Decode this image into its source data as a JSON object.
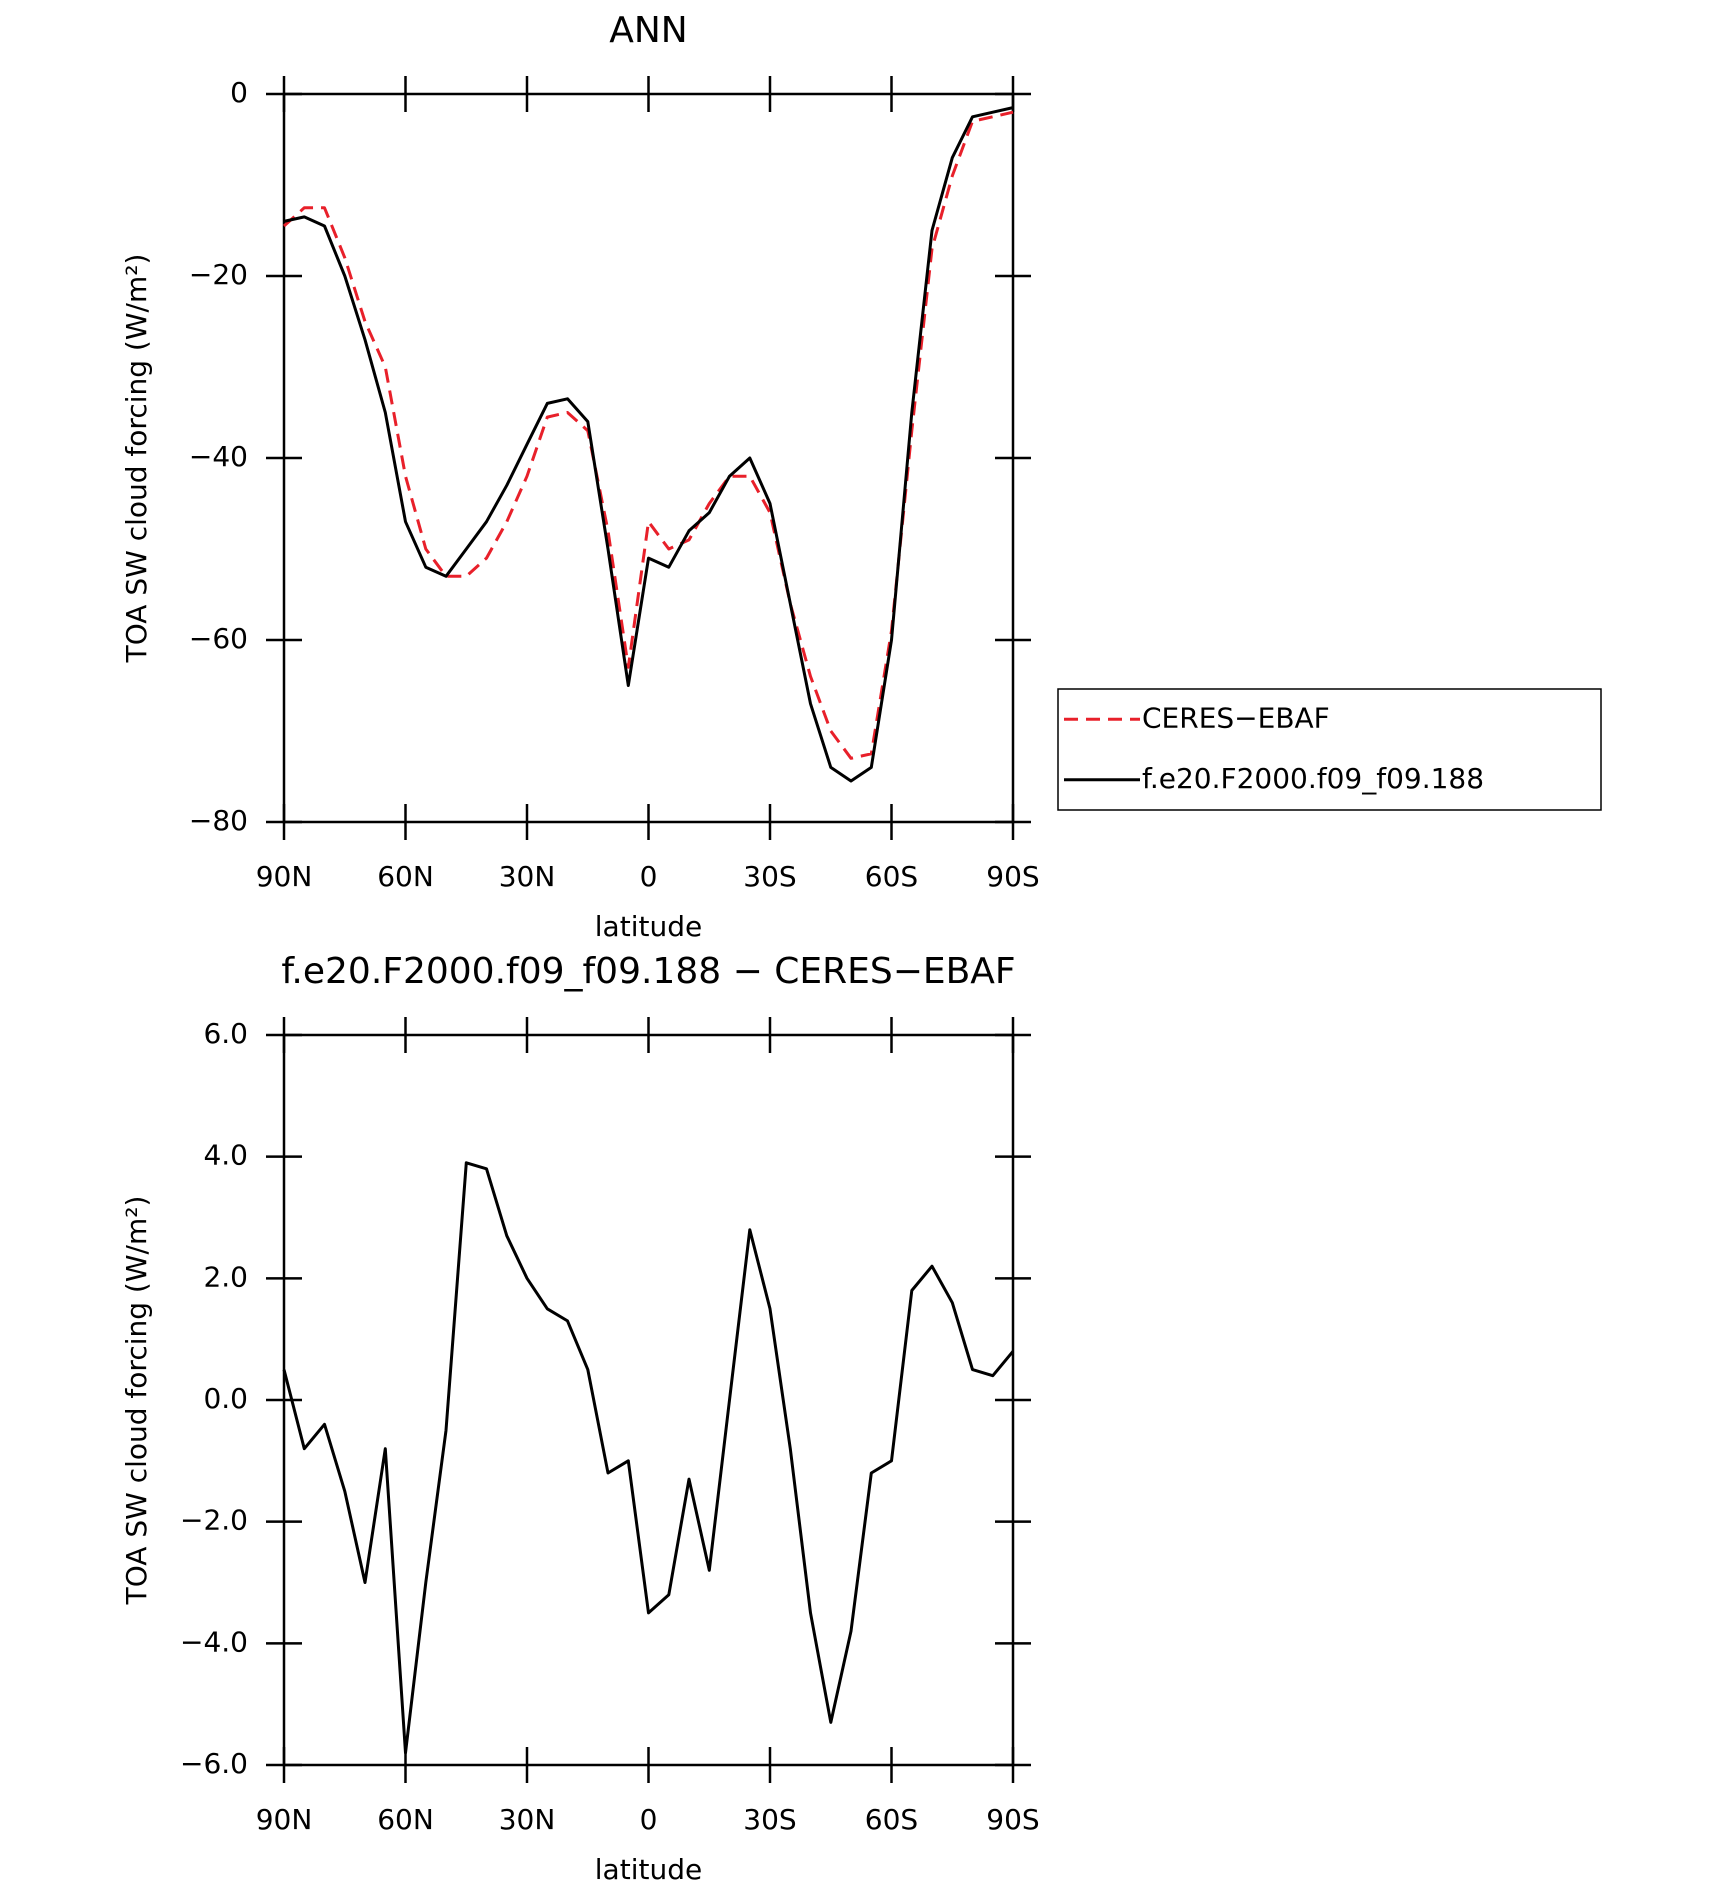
{
  "chart_data": [
    {
      "type": "line",
      "title": "ANN",
      "xlabel": "latitude",
      "ylabel": "TOA SW cloud forcing (W/m²)",
      "x": [
        90,
        85,
        80,
        75,
        70,
        65,
        60,
        55,
        50,
        45,
        40,
        35,
        30,
        25,
        20,
        15,
        10,
        5,
        0,
        -5,
        -10,
        -15,
        -20,
        -25,
        -30,
        -35,
        -40,
        -45,
        -50,
        -55,
        -60,
        -65,
        -70,
        -75,
        -80,
        -85,
        -90
      ],
      "series": [
        {
          "name": "CERES−EBAF",
          "color": "#e8202a",
          "dashed": true,
          "values": [
            -14.5,
            -12.5,
            -12.5,
            -18,
            -25,
            -30,
            -42,
            -50,
            -53,
            -53,
            -51,
            -47,
            -42,
            -35.5,
            -35,
            -37,
            -48,
            -63,
            -47,
            -50,
            -49,
            -45,
            -42,
            -42,
            -46,
            -56,
            -64,
            -70,
            -73,
            -72.5,
            -59,
            -37,
            -17,
            -9,
            -3,
            -2.5,
            -2
          ]
        },
        {
          "name": "f.e20.F2000.f09_f09.188",
          "color": "#000000",
          "dashed": false,
          "values": [
            -14,
            -13.5,
            -14.5,
            -20,
            -27,
            -35,
            -47,
            -52,
            -53,
            -50,
            -47,
            -43,
            -38.5,
            -34,
            -33.5,
            -36,
            -50,
            -65,
            -51,
            -52,
            -48,
            -46,
            -42,
            -40,
            -45,
            -56,
            -67,
            -74,
            -75.5,
            -74,
            -60,
            -35,
            -15,
            -7,
            -2.5,
            -2,
            -1.5
          ]
        }
      ],
      "xlim": [
        90,
        -90
      ],
      "xticks": [
        {
          "value": 90,
          "label": "90N"
        },
        {
          "value": 60,
          "label": "60N"
        },
        {
          "value": 30,
          "label": "30N"
        },
        0,
        {
          "value": -30,
          "label": "30S"
        },
        {
          "value": -60,
          "label": "60S"
        },
        {
          "value": -90,
          "label": "90S"
        }
      ],
      "ylim": [
        -80,
        0
      ],
      "yticks": [
        {
          "value": 0,
          "label": "0"
        },
        {
          "value": -20,
          "label": "−20"
        },
        {
          "value": -40,
          "label": "−40"
        },
        {
          "value": -60,
          "label": "−60"
        },
        {
          "value": -80,
          "label": "−80"
        }
      ],
      "legend": "right"
    },
    {
      "type": "line",
      "title": "f.e20.F2000.f09_f09.188 − CERES−EBAF",
      "xlabel": "latitude",
      "ylabel": "TOA SW cloud forcing (W/m²)",
      "x": [
        90,
        85,
        80,
        75,
        70,
        65,
        60,
        55,
        50,
        45,
        40,
        35,
        30,
        25,
        20,
        15,
        10,
        5,
        0,
        -5,
        -10,
        -15,
        -20,
        -25,
        -30,
        -35,
        -40,
        -45,
        -50,
        -55,
        -60,
        -65,
        -70,
        -75,
        -80,
        -85,
        -90
      ],
      "series": [
        {
          "color": "#000000",
          "dashed": false,
          "values": [
            0.5,
            -0.8,
            -0.4,
            -1.5,
            -3.0,
            -0.8,
            -5.8,
            -3.0,
            -0.5,
            3.9,
            3.8,
            2.7,
            2.0,
            1.5,
            1.3,
            0.5,
            -1.2,
            -1.0,
            -3.5,
            -3.2,
            -1.3,
            -2.8,
            0,
            2.8,
            1.5,
            -0.8,
            -3.5,
            -5.3,
            -3.8,
            -1.2,
            -1.0,
            1.8,
            2.2,
            1.6,
            0.5,
            0.4,
            0.8
          ]
        }
      ],
      "xlim": [
        90,
        -90
      ],
      "xticks": [
        {
          "value": 90,
          "label": "90N"
        },
        {
          "value": 60,
          "label": "60N"
        },
        {
          "value": 30,
          "label": "30N"
        },
        0,
        {
          "value": -30,
          "label": "30S"
        },
        {
          "value": -60,
          "label": "60S"
        },
        {
          "value": -90,
          "label": "90S"
        }
      ],
      "ylim": [
        -6,
        6
      ],
      "yticks": [
        {
          "value": 6,
          "label": "6.0"
        },
        {
          "value": 4,
          "label": "4.0"
        },
        {
          "value": 2,
          "label": "2.0"
        },
        {
          "value": 0,
          "label": "0.0"
        },
        {
          "value": -2,
          "label": "−2.0"
        },
        {
          "value": -4,
          "label": "−4.0"
        },
        {
          "value": -6,
          "label": "−6.0"
        }
      ]
    }
  ]
}
